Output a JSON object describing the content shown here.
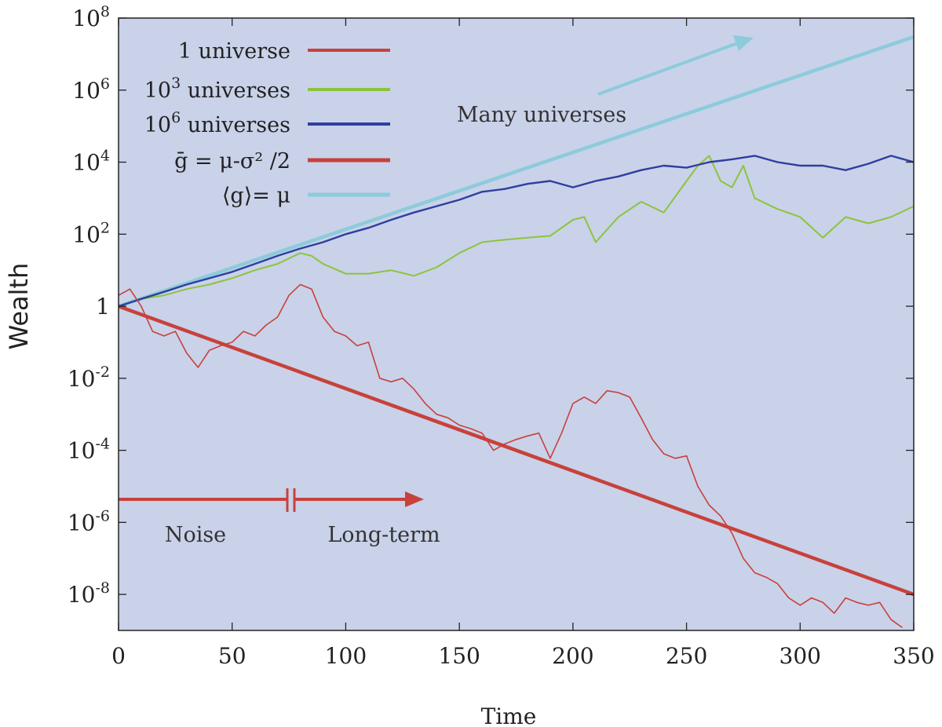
{
  "chart_data": {
    "type": "line",
    "title": "",
    "xlabel": "Time",
    "ylabel": "Wealth",
    "xlim": [
      0,
      350
    ],
    "ylim": [
      1e-09,
      100000000.0
    ],
    "yscale": "log",
    "grid": false,
    "legend_placement": "top-left",
    "x_ticks": [
      "0",
      "50",
      "100",
      "150",
      "200",
      "250",
      "300",
      "350"
    ],
    "y_ticks": [
      {
        "base": "10",
        "exp": "8"
      },
      {
        "base": "10",
        "exp": "6"
      },
      {
        "base": "10",
        "exp": "4"
      },
      {
        "base": "10",
        "exp": "2"
      },
      {
        "base": "1",
        "exp": ""
      },
      {
        "base": "10",
        "exp": "-2"
      },
      {
        "base": "10",
        "exp": "-4"
      },
      {
        "base": "10",
        "exp": "-6"
      },
      {
        "base": "10",
        "exp": "-8"
      }
    ],
    "colors": {
      "background": "#c9d2e9",
      "red": "#c8413b",
      "green": "#8cc43c",
      "blue": "#2e3f9e",
      "cyan": "#8ccbdb"
    },
    "legend": [
      {
        "pre": "1 universe",
        "sup": "",
        "post": "",
        "color": "#c8413b",
        "width": 4
      },
      {
        "pre": "10",
        "sup": "3",
        "post": " universes",
        "color": "#8cc43c",
        "width": 4
      },
      {
        "pre": "10",
        "sup": "6",
        "post": " universes",
        "color": "#2e3f9e",
        "width": 4
      },
      {
        "pre": "ḡ = μ-σ² /2",
        "sup": "",
        "post": "",
        "color": "#c8413b",
        "width": 5
      },
      {
        "pre": "⟨g⟩= μ",
        "sup": "",
        "post": "",
        "color": "#8ccbdb",
        "width": 5
      }
    ],
    "annotations": {
      "many_universes": "Many universes",
      "noise": "Noise",
      "long_term": "Long-term"
    },
    "series": [
      {
        "name": "1 universe",
        "color": "#c8413b",
        "x": [
          0,
          5,
          10,
          15,
          20,
          25,
          30,
          35,
          40,
          45,
          50,
          55,
          60,
          65,
          70,
          75,
          80,
          85,
          90,
          95,
          100,
          105,
          110,
          115,
          120,
          125,
          130,
          135,
          140,
          145,
          150,
          155,
          160,
          165,
          170,
          175,
          180,
          185,
          190,
          195,
          200,
          205,
          210,
          215,
          220,
          225,
          230,
          235,
          240,
          245,
          250,
          255,
          260,
          265,
          270,
          275,
          280,
          285,
          290,
          295,
          300,
          305,
          310,
          315,
          320,
          325,
          330,
          335,
          340,
          345
        ],
        "y": [
          2,
          3,
          1,
          0.2,
          0.15,
          0.2,
          0.05,
          0.02,
          0.06,
          0.08,
          0.1,
          0.2,
          0.15,
          0.3,
          0.5,
          2,
          4,
          3,
          0.5,
          0.2,
          0.15,
          0.08,
          0.1,
          0.01,
          0.008,
          0.01,
          0.005,
          0.002,
          0.001,
          0.0008,
          0.0005,
          0.0004,
          0.0003,
          0.0001,
          0.00015,
          0.0002,
          0.00025,
          0.0003,
          6e-05,
          0.0003,
          0.002,
          0.003,
          0.002,
          0.0045,
          0.004,
          0.003,
          0.0008,
          0.0002,
          8e-05,
          6e-05,
          7e-05,
          1e-05,
          3e-06,
          1.5e-06,
          5e-07,
          1e-07,
          4e-08,
          3e-08,
          2e-08,
          8e-09,
          5e-09,
          8e-09,
          6e-09,
          3e-09,
          8e-09,
          6e-09,
          5e-09,
          6e-09,
          2e-09,
          1.2e-09
        ]
      },
      {
        "name": "10³ universes",
        "color": "#8cc43c",
        "x": [
          0,
          10,
          20,
          30,
          40,
          50,
          60,
          70,
          80,
          85,
          90,
          100,
          110,
          120,
          130,
          140,
          150,
          160,
          170,
          180,
          190,
          200,
          205,
          210,
          220,
          230,
          240,
          250,
          255,
          260,
          265,
          270,
          275,
          280,
          290,
          300,
          310,
          320,
          330,
          340,
          350
        ],
        "y": [
          1,
          1.6,
          2,
          3,
          4,
          6,
          10,
          15,
          30,
          25,
          15,
          8,
          8,
          10,
          7,
          12,
          30,
          60,
          70,
          80,
          90,
          250,
          300,
          60,
          300,
          800,
          400,
          3000,
          8000,
          15000,
          3000,
          2000,
          8000,
          1000,
          500,
          300,
          80,
          300,
          200,
          300,
          600
        ]
      },
      {
        "name": "10⁶ universes",
        "color": "#2e3f9e",
        "x": [
          0,
          10,
          20,
          30,
          40,
          50,
          60,
          70,
          80,
          90,
          100,
          110,
          120,
          130,
          140,
          150,
          160,
          170,
          180,
          190,
          200,
          210,
          220,
          230,
          240,
          250,
          260,
          270,
          280,
          290,
          300,
          310,
          320,
          330,
          340,
          350
        ],
        "y": [
          1,
          1.6,
          2.5,
          4,
          6,
          9,
          15,
          25,
          40,
          60,
          100,
          150,
          250,
          400,
          600,
          900,
          1500,
          1800,
          2500,
          3000,
          2000,
          3000,
          4000,
          6000,
          8000,
          7000,
          10000,
          12000,
          15000,
          10000,
          8000,
          8000,
          6000,
          9000,
          15000,
          10000
        ]
      },
      {
        "name": "ḡ = μ-σ² /2",
        "color": "#c8413b",
        "x": [
          0,
          350
        ],
        "y": [
          1,
          1e-08
        ]
      },
      {
        "name": "⟨g⟩= μ",
        "color": "#8ccbdb",
        "x": [
          0,
          350
        ],
        "y": [
          1,
          30000000.0
        ]
      }
    ]
  }
}
